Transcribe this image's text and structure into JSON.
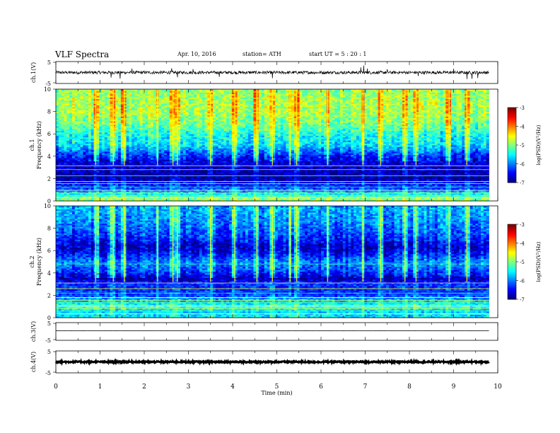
{
  "header": {
    "title": "VLF  Spectra",
    "date": "Apr. 10, 2016",
    "station": "station= ATH",
    "start_ut": "start  UT  =   5  : 20 : 1"
  },
  "chart_data": [
    {
      "type": "line",
      "panel": "waveform-ch1",
      "ylabel": "ch.1(V)",
      "ylim": [
        -5,
        5
      ],
      "yticks": [
        "5",
        "-5"
      ],
      "xlim": [
        0,
        10
      ],
      "x_end": 9.8,
      "baseline": 0.0,
      "noise_amplitude": 0.7,
      "spikes": [
        {
          "x": 1.25,
          "y": -2.3
        },
        {
          "x": 1.45,
          "y": -2.8
        },
        {
          "x": 1.72,
          "y": 1.8
        },
        {
          "x": 2.62,
          "y": 1.9
        },
        {
          "x": 2.75,
          "y": -2.2
        },
        {
          "x": 3.1,
          "y": 1.6
        },
        {
          "x": 3.7,
          "y": -2.0
        },
        {
          "x": 4.9,
          "y": -2.6
        },
        {
          "x": 6.9,
          "y": 2.4
        },
        {
          "x": 6.97,
          "y": 3.2
        },
        {
          "x": 7.05,
          "y": 1.8
        },
        {
          "x": 7.5,
          "y": 1.5
        },
        {
          "x": 8.2,
          "y": -1.6
        },
        {
          "x": 9.0,
          "y": 1.7
        },
        {
          "x": 9.3,
          "y": -3.0
        },
        {
          "x": 9.42,
          "y": -2.9
        },
        {
          "x": 9.55,
          "y": -2.5
        }
      ]
    },
    {
      "type": "heatmap",
      "panel": "spectrogram-ch1",
      "ylabel": "ch.1\nFrequency  (kHz)",
      "yticks": [
        "0",
        "2",
        "4",
        "6",
        "8",
        "10"
      ],
      "ylim": [
        0,
        10
      ],
      "xlim": [
        0,
        10
      ],
      "x_end": 9.8,
      "colorbar": {
        "label": "log(PSD)(V²/Hz)",
        "range": [
          -7,
          -3
        ],
        "ticks": [
          "-3",
          "-4",
          "-5",
          "-6",
          "-7"
        ]
      },
      "frequency_profile": [
        {
          "f": 0.25,
          "v": -5.0
        },
        {
          "f": 0.5,
          "v": -5.3
        },
        {
          "f": 0.8,
          "v": -5.8
        },
        {
          "f": 1.2,
          "v": -6.3
        },
        {
          "f": 1.6,
          "v": -6.4
        },
        {
          "f": 2.0,
          "v": -6.9
        },
        {
          "f": 2.5,
          "v": -6.8
        },
        {
          "f": 3.0,
          "v": -6.7
        },
        {
          "f": 3.5,
          "v": -6.6
        },
        {
          "f": 4.0,
          "v": -6.4
        },
        {
          "f": 4.5,
          "v": -6.0
        },
        {
          "f": 5.0,
          "v": -5.6
        },
        {
          "f": 6.0,
          "v": -5.4
        },
        {
          "f": 7.0,
          "v": -5.0
        },
        {
          "f": 8.0,
          "v": -4.8
        },
        {
          "f": 9.0,
          "v": -4.8
        },
        {
          "f": 10.0,
          "v": -4.9
        }
      ],
      "tones_khz": [
        0.3,
        0.45,
        0.7,
        0.95,
        1.25,
        1.55,
        1.75,
        2.25,
        2.8,
        3.15
      ],
      "broadband_bursts": [
        0.9,
        1.3,
        1.55,
        2.3,
        2.65,
        2.75,
        3.5,
        4.05,
        4.55,
        4.9,
        5.3,
        5.45,
        6.15,
        6.95,
        7.35,
        7.9,
        8.15,
        8.9,
        9.3
      ]
    },
    {
      "type": "heatmap",
      "panel": "spectrogram-ch2",
      "ylabel": "ch.2\nFrequency  (kHz)",
      "yticks": [
        "0",
        "2",
        "4",
        "6",
        "8",
        "10"
      ],
      "ylim": [
        0,
        10
      ],
      "xlim": [
        0,
        10
      ],
      "x_end": 9.8,
      "colorbar": {
        "label": "log(PSD)(V²/Hz)",
        "range": [
          -7,
          -3
        ],
        "ticks": [
          "-3",
          "-4",
          "-5",
          "-6",
          "-7"
        ]
      },
      "frequency_profile": [
        {
          "f": 0.25,
          "v": -5.6
        },
        {
          "f": 0.6,
          "v": -5.7
        },
        {
          "f": 1.0,
          "v": -5.3
        },
        {
          "f": 1.4,
          "v": -5.6
        },
        {
          "f": 2.0,
          "v": -6.2
        },
        {
          "f": 2.6,
          "v": -6.4
        },
        {
          "f": 3.0,
          "v": -6.3
        },
        {
          "f": 3.5,
          "v": -6.8
        },
        {
          "f": 4.0,
          "v": -6.4
        },
        {
          "f": 4.5,
          "v": -6.1
        },
        {
          "f": 5.0,
          "v": -6.0
        },
        {
          "f": 5.5,
          "v": -6.3
        },
        {
          "f": 6.0,
          "v": -6.6
        },
        {
          "f": 6.5,
          "v": -6.7
        },
        {
          "f": 7.0,
          "v": -6.4
        },
        {
          "f": 8.0,
          "v": -6.1
        },
        {
          "f": 9.0,
          "v": -5.9
        },
        {
          "f": 10.0,
          "v": -5.8
        }
      ],
      "tones_khz": [
        0.35,
        0.6,
        0.85,
        1.05,
        1.35,
        1.55,
        1.8,
        2.2,
        2.6,
        3.1,
        4.8
      ],
      "broadband_bursts": [
        0.9,
        1.3,
        1.55,
        2.3,
        2.65,
        2.75,
        3.5,
        4.05,
        4.55,
        4.9,
        5.3,
        5.45,
        6.15,
        6.95,
        7.35,
        7.9,
        8.15,
        8.9,
        9.3
      ]
    },
    {
      "type": "line",
      "panel": "waveform-ch3",
      "ylabel": "ch.3(V)",
      "ylim": [
        -5,
        5
      ],
      "yticks": [
        "5",
        "-5"
      ],
      "xlim": [
        0,
        10
      ],
      "x_end": 9.8,
      "baseline": 0.4,
      "noise_amplitude": 0.05
    },
    {
      "type": "line",
      "panel": "waveform-ch4",
      "ylabel": "ch.4(V)",
      "ylim": [
        -5,
        5
      ],
      "yticks": [
        "5",
        "-5"
      ],
      "xlim": [
        0,
        10
      ],
      "x_end": 9.8,
      "baseline": 0.0,
      "noise_amplitude": 0.35
    }
  ],
  "x_axis": {
    "label": "Time  (min)",
    "ticks": [
      "0",
      "1",
      "2",
      "3",
      "4",
      "5",
      "6",
      "7",
      "8",
      "9",
      "10"
    ]
  }
}
